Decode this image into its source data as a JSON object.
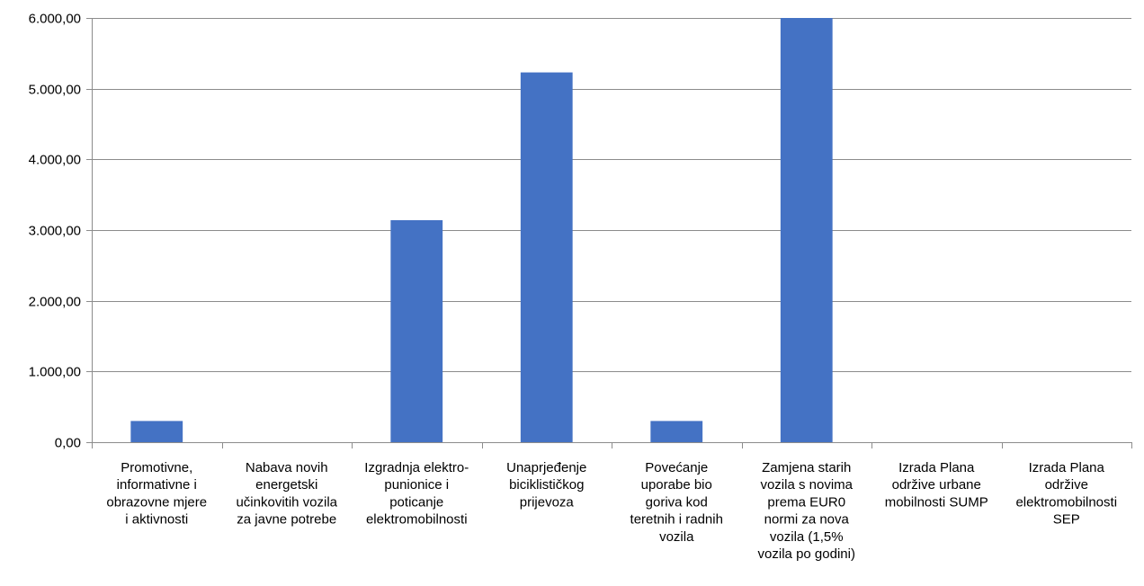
{
  "chart_data": {
    "type": "bar",
    "categories": [
      [
        "Promotivne,",
        "informativne i",
        "obrazovne mjere",
        "i aktivnosti"
      ],
      [
        "Nabava novih",
        "energetski",
        "učinkovitih vozila",
        "za javne potrebe"
      ],
      [
        "Izgradnja elektro-",
        "punionice i",
        "poticanje",
        "elektromobilnosti"
      ],
      [
        "Unaprjeđenje",
        "biciklističkog",
        "prijevoza"
      ],
      [
        "Povećanje",
        "uporabe bio",
        "goriva kod",
        "teretnih i radnih",
        "vozila"
      ],
      [
        "Zamjena starih",
        "vozila s novima",
        "prema EUR0",
        "normi za nova",
        "vozila (1,5%",
        "vozila po godini)"
      ],
      [
        "Izrada Plana",
        "održive urbane",
        "mobilnosti SUMP"
      ],
      [
        "Izrada Plana",
        "održive",
        "elektromobilnosti",
        "SEP"
      ]
    ],
    "values": [
      300,
      0,
      3140,
      5230,
      300,
      6000,
      0,
      0
    ],
    "ylim": [
      0,
      6000
    ],
    "yticks": [
      "0,00",
      "1.000,00",
      "2.000,00",
      "3.000,00",
      "4.000,00",
      "5.000,00",
      "6.000,00"
    ],
    "ytick_values": [
      0,
      1000,
      2000,
      3000,
      4000,
      5000,
      6000
    ],
    "title": "",
    "xlabel": "",
    "ylabel": "",
    "grid": true,
    "legend": "none",
    "bar_color": "#4472c4"
  }
}
